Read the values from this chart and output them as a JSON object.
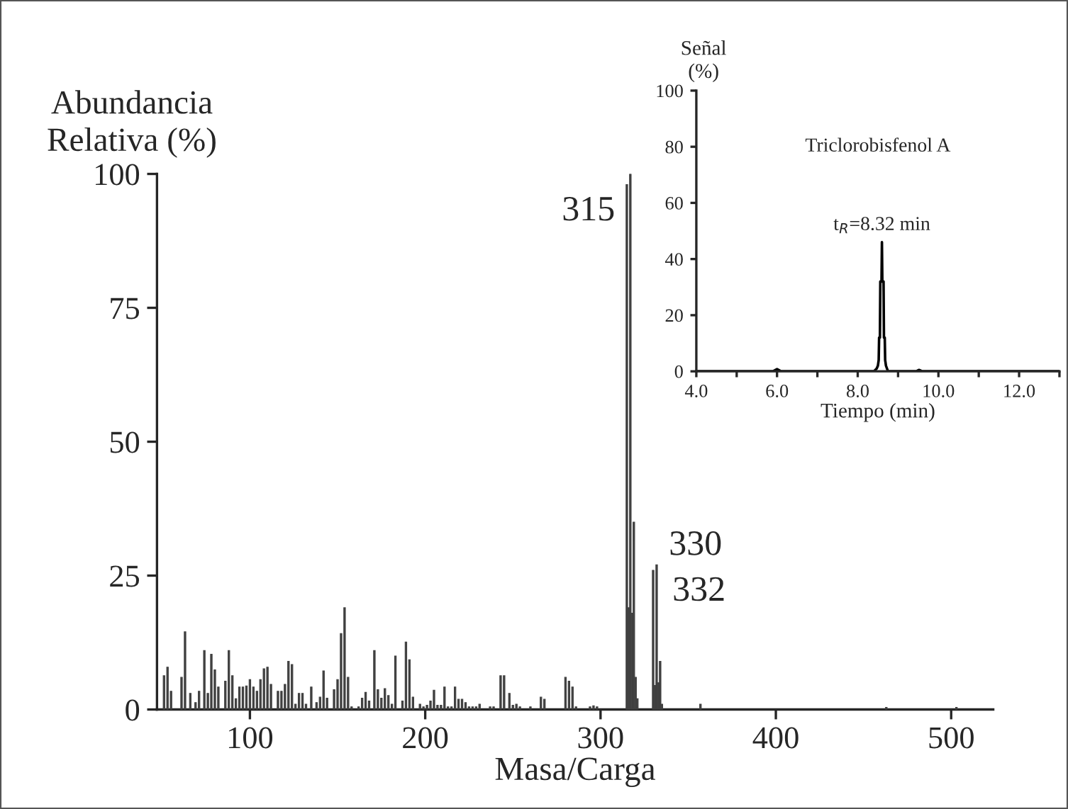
{
  "chart_data": [
    {
      "type": "bar",
      "xlabel": "Masa/Carga",
      "ylabel": "Abundancia\nRelativa (%)",
      "color": "#404040",
      "x": [
        51,
        53,
        55,
        61,
        63,
        66,
        69,
        71,
        74,
        76,
        78,
        80,
        82,
        86,
        88,
        90,
        92,
        94,
        96,
        98,
        100,
        102,
        104,
        106,
        108,
        110,
        112,
        116,
        118,
        120,
        122,
        124,
        126,
        128,
        130,
        132,
        135,
        138,
        140,
        142,
        144,
        148,
        150,
        152,
        154,
        156,
        158,
        162,
        164,
        166,
        168,
        171,
        173,
        175,
        177,
        179,
        181,
        183,
        187,
        189,
        191,
        193,
        197,
        199,
        201,
        203,
        205,
        207,
        209,
        211,
        213,
        215,
        217,
        219,
        221,
        223,
        225,
        227,
        229,
        231,
        237,
        239,
        243,
        245,
        248,
        250,
        252,
        254,
        260,
        266,
        268,
        280,
        282,
        284,
        286,
        294,
        296,
        298,
        315,
        316,
        317,
        318,
        319,
        320,
        321,
        330,
        331,
        332,
        333,
        334,
        335,
        357,
        463,
        503
      ],
      "values": [
        6.3,
        7.9,
        3.4,
        6,
        14.5,
        3,
        1.3,
        3.4,
        11,
        3,
        10.3,
        7.4,
        4.2,
        5.3,
        11,
        6.3,
        2,
        4.2,
        4.2,
        4.4,
        5.6,
        4.2,
        3.4,
        5.6,
        7.6,
        7.9,
        4.7,
        3.4,
        3.4,
        4.7,
        9,
        8.4,
        1,
        3,
        3,
        1,
        4.2,
        1.3,
        2.3,
        7.2,
        2.1,
        3.7,
        5.6,
        14.2,
        19,
        6,
        0.5,
        0.5,
        2.1,
        3.2,
        1.6,
        11,
        3.7,
        2.1,
        3.9,
        2.6,
        1,
        10,
        1.6,
        12.6,
        9.3,
        2.3,
        1,
        0.5,
        0.8,
        1.6,
        3.6,
        0.8,
        0.8,
        4.2,
        0.5,
        0.5,
        4.2,
        1.9,
        1.9,
        1.3,
        0.5,
        0.5,
        0.5,
        1,
        0.5,
        0.5,
        6.3,
        6.3,
        3,
        0.8,
        1,
        0.5,
        0.5,
        2.3,
        1.9,
        6,
        5.3,
        4.2,
        0.5,
        0.5,
        0.7,
        0.5,
        98,
        19,
        100,
        18,
        35,
        6,
        2,
        26,
        4.5,
        27,
        5,
        9,
        1,
        1,
        0.4,
        0.4
      ],
      "xlim": [
        47,
        524
      ],
      "xticks": [
        100,
        200,
        300,
        400,
        500
      ],
      "ylim": [
        0,
        100
      ],
      "yticks": [
        0,
        25,
        50,
        75,
        100
      ],
      "grid": false,
      "annotations": [
        {
          "text": "315",
          "x": 315,
          "y": 98
        },
        {
          "text": "330",
          "x": 330,
          "y": 26
        },
        {
          "text": "332",
          "x": 332,
          "y": 27
        }
      ]
    },
    {
      "type": "line",
      "title": "Triclorobisfenol A",
      "xlabel": "Tiempo (min)",
      "ylabel": "Señal\n(%)",
      "color": "#000000",
      "x": [
        4.0,
        5.9,
        6.0,
        6.1,
        8.4,
        8.47,
        8.5,
        8.52,
        8.53,
        8.55,
        8.56,
        8.59,
        8.6,
        8.61,
        8.64,
        8.65,
        8.67,
        8.68,
        8.7,
        8.75,
        9.45,
        9.52,
        9.6,
        13.0
      ],
      "values": [
        0,
        0,
        0.8,
        0,
        0,
        1,
        2,
        4,
        12,
        12,
        32,
        32,
        46,
        32,
        32,
        12,
        12,
        4,
        2,
        0,
        0,
        0.5,
        0,
        0
      ],
      "xlim": [
        4.0,
        13.0
      ],
      "xticks": [
        {
          "value": 4,
          "label": "4.0"
        },
        {
          "value": 5,
          "label": null
        },
        {
          "value": 6,
          "label": "6.0"
        },
        {
          "value": 7,
          "label": null
        },
        {
          "value": 8,
          "label": "8.0"
        },
        {
          "value": 9,
          "label": null
        },
        {
          "value": 10,
          "label": "10.0"
        },
        {
          "value": 11,
          "label": null
        },
        {
          "value": 12,
          "label": "12.0"
        },
        {
          "value": 13,
          "label": null
        }
      ],
      "ylim": [
        0,
        100
      ],
      "yticks": [
        0,
        20,
        40,
        60,
        80,
        100
      ],
      "grid": false,
      "annotations": [
        {
          "text": "t$_{R}$=8.32 min",
          "x": 8.6,
          "y": 46
        }
      ]
    }
  ]
}
